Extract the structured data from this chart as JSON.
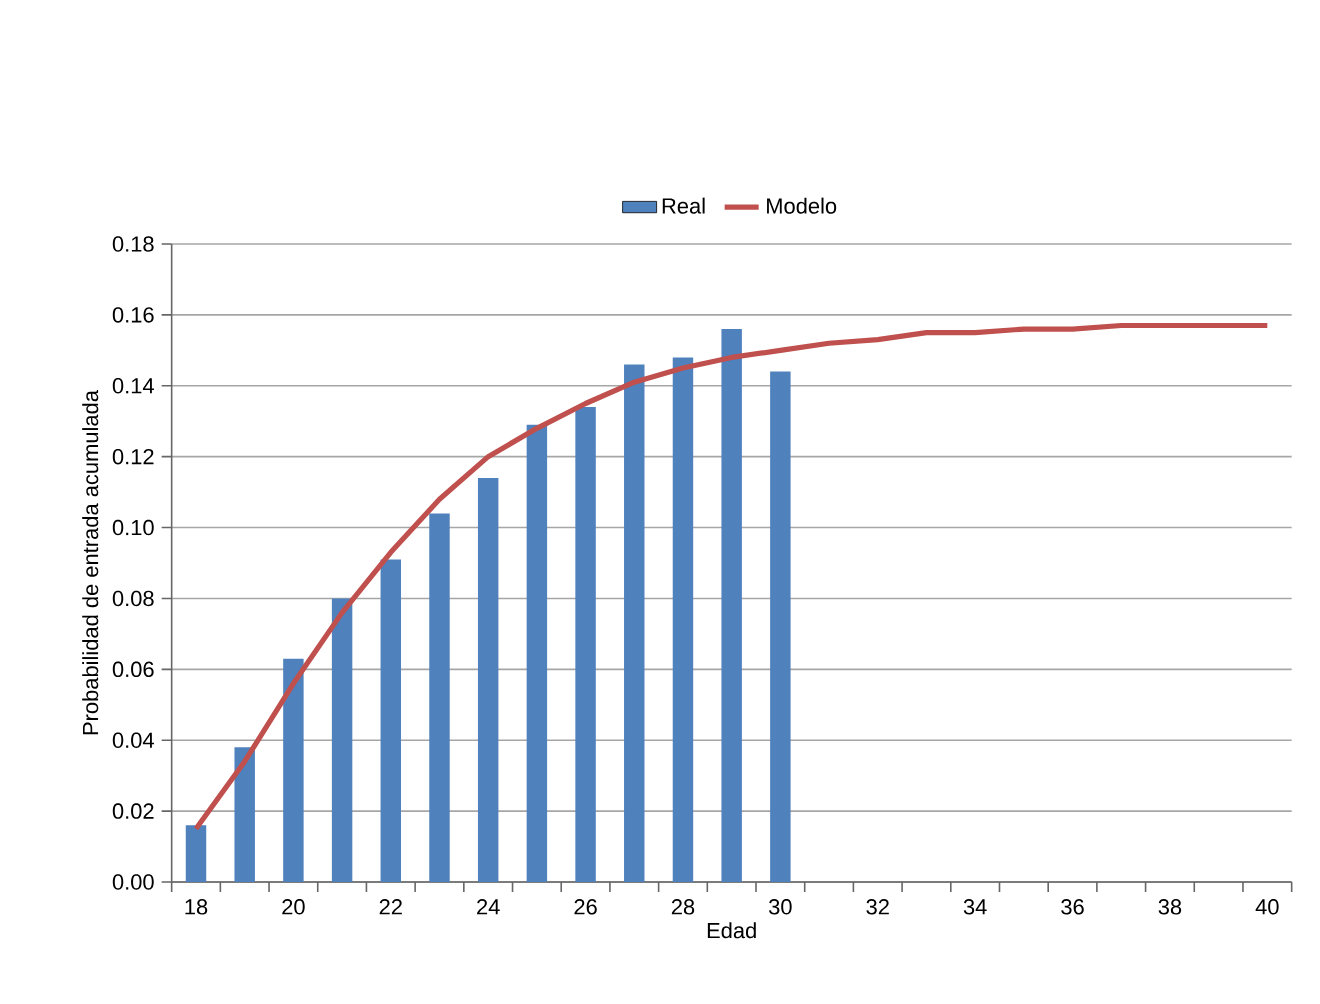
{
  "chart_data": {
    "type": "bar",
    "xlabel": "Edad",
    "ylabel": "Probabilidad de entrada acumulada",
    "categories": [
      "18",
      null,
      "20",
      null,
      "22",
      null,
      "24",
      null,
      "26",
      null,
      "28",
      null,
      "30",
      null,
      "32",
      null,
      "34",
      null,
      "36",
      null,
      "38",
      null,
      "40"
    ],
    "series": [
      {
        "name": "Real",
        "color": "#4f81bd",
        "values": [
          0.016,
          0.038,
          0.063,
          0.08,
          0.091,
          0.104,
          0.114,
          0.129,
          0.134,
          0.146,
          0.148,
          0.156,
          0.144,
          null,
          null,
          null,
          null,
          null,
          null,
          null,
          null,
          null,
          null
        ]
      },
      {
        "name": "Modelo",
        "type": "line",
        "color": "#c0504d",
        "values": [
          0.015,
          0.034,
          0.056,
          0.076,
          0.093,
          0.108,
          0.12,
          0.128,
          0.135,
          0.141,
          0.145,
          0.148,
          0.15,
          0.152,
          0.153,
          0.155,
          0.155,
          0.156,
          0.156,
          0.157,
          0.157,
          0.157,
          0.157
        ]
      }
    ],
    "ylim": [
      0,
      0.18
    ],
    "yticks": [
      {
        "value": 0,
        "label": "0.00"
      },
      {
        "value": 0.02,
        "label": "0.02"
      },
      {
        "value": 0.04,
        "label": "0.04"
      },
      {
        "value": 0.06,
        "label": "0.06"
      },
      {
        "value": 0.08,
        "label": "0.08"
      },
      {
        "value": 0.1,
        "label": "0.10"
      },
      {
        "value": 0.12,
        "label": "0.12"
      },
      {
        "value": 0.14,
        "label": "0.14"
      },
      {
        "value": 0.16,
        "label": "0.16"
      },
      {
        "value": 0.18,
        "label": "0.18"
      }
    ],
    "grid": "y",
    "legend": "top"
  }
}
